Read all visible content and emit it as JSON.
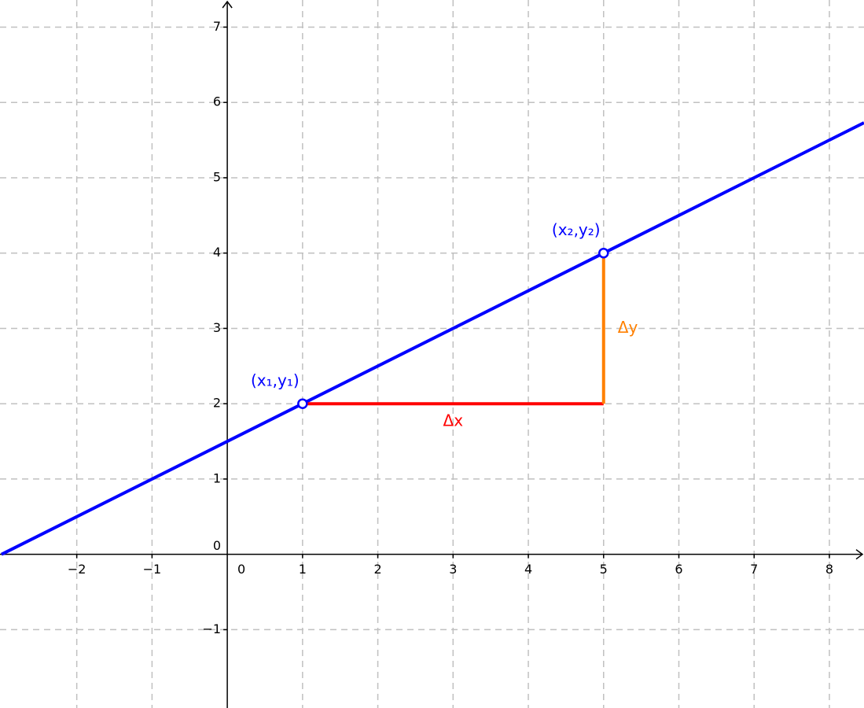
{
  "chart_data": {
    "type": "line",
    "xlim": [
      -3.02,
      8.46
    ],
    "ylim": [
      -2.04,
      7.36
    ],
    "xticks": [
      {
        "value": -2,
        "label": "−2"
      },
      {
        "value": -1,
        "label": "−1"
      },
      0,
      1,
      2,
      3,
      4,
      5,
      6,
      7,
      8
    ],
    "yticks": [
      {
        "value": -1,
        "label": "−1"
      },
      0,
      1,
      2,
      3,
      4,
      5,
      6,
      7
    ],
    "grid": true,
    "series": [
      {
        "color": "#0000ff",
        "x": [
          -3,
          8.46
        ],
        "values": [
          0,
          5.73
        ]
      },
      {
        "color": "#ff0000",
        "x": [
          1,
          5
        ],
        "values": [
          2,
          2
        ],
        "label": "Δx"
      },
      {
        "color": "#ff8000",
        "x": [
          5,
          5
        ],
        "values": [
          2,
          4
        ],
        "label": "Δy"
      }
    ],
    "points": {
      "color": "#0000ff",
      "x": [
        1,
        5
      ],
      "values": [
        2,
        4
      ],
      "labels": [
        "(x₁,y₁)",
        "(x₂,y₂)"
      ]
    }
  }
}
